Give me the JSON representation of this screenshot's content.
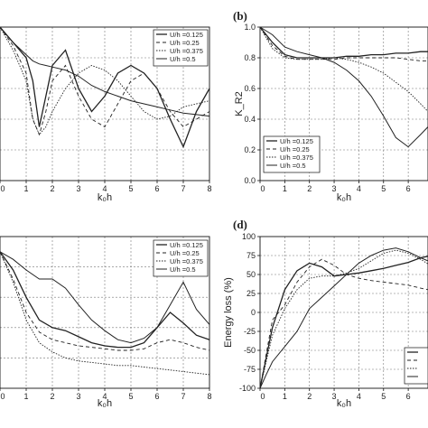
{
  "chart_data": [
    {
      "type": "line",
      "panel_label": "",
      "xlabel": "k₀h",
      "ylabel": "",
      "xlim": [
        0,
        8
      ],
      "ylim": [
        0,
        1.0
      ],
      "x_ticks": [
        "0",
        "1",
        "2",
        "3",
        "4",
        "5",
        "6",
        "7",
        "8"
      ],
      "y_ticks": [],
      "grid": true,
      "legend_position": "top-right",
      "series": [
        {
          "name": "U/h =0.125",
          "x": [
            0,
            0.5,
            1,
            1.25,
            1.5,
            1.75,
            2,
            2.5,
            3,
            3.5,
            4,
            4.5,
            5,
            5.5,
            6,
            6.5,
            7,
            7.5,
            8
          ],
          "y": [
            1.0,
            0.9,
            0.8,
            0.65,
            0.35,
            0.55,
            0.75,
            0.85,
            0.6,
            0.45,
            0.55,
            0.7,
            0.75,
            0.7,
            0.6,
            0.4,
            0.22,
            0.45,
            0.6
          ]
        },
        {
          "name": "U/h =0.25",
          "x": [
            0,
            0.5,
            1,
            1.25,
            1.5,
            1.75,
            2,
            2.5,
            3,
            3.5,
            4,
            4.5,
            5,
            5.5,
            6,
            6.5,
            7,
            7.5,
            8
          ],
          "y": [
            1.0,
            0.88,
            0.7,
            0.4,
            0.3,
            0.45,
            0.65,
            0.75,
            0.55,
            0.4,
            0.35,
            0.5,
            0.65,
            0.7,
            0.6,
            0.45,
            0.35,
            0.4,
            0.45
          ]
        },
        {
          "name": "U/h =0.375",
          "x": [
            0,
            0.5,
            1,
            1.25,
            1.5,
            1.75,
            2,
            2.5,
            3,
            3.5,
            4,
            4.5,
            5,
            5.5,
            6,
            6.5,
            7,
            7.5,
            8
          ],
          "y": [
            1.0,
            0.85,
            0.65,
            0.4,
            0.3,
            0.35,
            0.45,
            0.6,
            0.7,
            0.75,
            0.72,
            0.65,
            0.55,
            0.45,
            0.4,
            0.42,
            0.48,
            0.5,
            0.52
          ]
        },
        {
          "name": "U/h =0.5",
          "x": [
            0,
            0.5,
            1,
            1.25,
            1.5,
            1.75,
            2,
            2.5,
            3,
            3.5,
            4,
            4.5,
            5,
            5.5,
            6,
            6.5,
            7,
            7.5,
            8
          ],
          "y": [
            1.0,
            0.9,
            0.82,
            0.78,
            0.76,
            0.75,
            0.74,
            0.72,
            0.68,
            0.62,
            0.58,
            0.55,
            0.52,
            0.5,
            0.48,
            0.46,
            0.44,
            0.43,
            0.42
          ]
        }
      ]
    },
    {
      "type": "line",
      "panel_label": "(b)",
      "xlabel": "k₀h",
      "ylabel": "K_R2",
      "xlim": [
        0,
        6.8
      ],
      "ylim": [
        0,
        1.0
      ],
      "x_ticks": [
        "0",
        "1",
        "2",
        "3",
        "4",
        "5",
        "6"
      ],
      "y_ticks": [
        "0.0",
        "0.2",
        "0.4",
        "0.6",
        "0.8",
        "1.0"
      ],
      "grid": true,
      "legend_position": "bottom-left",
      "series": [
        {
          "name": "U/h =0.125",
          "x": [
            0,
            0.5,
            1,
            1.5,
            2,
            2.5,
            3,
            3.5,
            4,
            4.5,
            5,
            5.5,
            6,
            6.5,
            6.8
          ],
          "y": [
            1.0,
            0.9,
            0.82,
            0.8,
            0.8,
            0.8,
            0.8,
            0.81,
            0.81,
            0.82,
            0.82,
            0.83,
            0.83,
            0.84,
            0.84
          ]
        },
        {
          "name": "U/h =0.25",
          "x": [
            0,
            0.5,
            1,
            1.5,
            2,
            2.5,
            3,
            3.5,
            4,
            4.5,
            5,
            5.5,
            6,
            6.5,
            6.8
          ],
          "y": [
            1.0,
            0.88,
            0.81,
            0.79,
            0.79,
            0.79,
            0.79,
            0.8,
            0.8,
            0.8,
            0.8,
            0.8,
            0.79,
            0.78,
            0.78
          ]
        },
        {
          "name": "U/h =0.375",
          "x": [
            0,
            0.5,
            1,
            1.5,
            2,
            2.5,
            3,
            3.5,
            4,
            4.5,
            5,
            5.5,
            6,
            6.5,
            6.8
          ],
          "y": [
            1.0,
            0.86,
            0.8,
            0.79,
            0.79,
            0.79,
            0.8,
            0.79,
            0.77,
            0.74,
            0.7,
            0.64,
            0.58,
            0.5,
            0.45
          ]
        },
        {
          "name": "U/h =0.5",
          "x": [
            0,
            0.5,
            1,
            1.5,
            2,
            2.5,
            3,
            3.5,
            4,
            4.5,
            5,
            5.5,
            6,
            6.5,
            6.8
          ],
          "y": [
            1.0,
            0.95,
            0.87,
            0.84,
            0.82,
            0.8,
            0.77,
            0.72,
            0.65,
            0.55,
            0.42,
            0.28,
            0.22,
            0.3,
            0.35
          ]
        }
      ]
    },
    {
      "type": "line",
      "panel_label": "",
      "xlabel": "k₀h",
      "ylabel": "",
      "xlim": [
        0,
        8
      ],
      "ylim": [
        0,
        1.0
      ],
      "x_ticks": [
        "0",
        "1",
        "2",
        "3",
        "4",
        "5",
        "6",
        "7",
        "8"
      ],
      "y_ticks": [],
      "grid": true,
      "legend_position": "top-right",
      "series": [
        {
          "name": "U/h =0.125",
          "x": [
            0,
            0.5,
            1,
            1.5,
            2,
            2.5,
            3,
            3.5,
            4,
            4.5,
            5,
            5.5,
            6,
            6.5,
            7,
            7.5,
            8
          ],
          "y": [
            0.9,
            0.78,
            0.6,
            0.45,
            0.4,
            0.38,
            0.34,
            0.3,
            0.28,
            0.27,
            0.27,
            0.3,
            0.4,
            0.5,
            0.43,
            0.35,
            0.32
          ]
        },
        {
          "name": "U/h =0.25",
          "x": [
            0,
            0.5,
            1,
            1.5,
            2,
            2.5,
            3,
            3.5,
            4,
            4.5,
            5,
            5.5,
            6,
            6.5,
            7,
            7.5,
            8
          ],
          "y": [
            0.9,
            0.72,
            0.5,
            0.37,
            0.32,
            0.3,
            0.28,
            0.27,
            0.26,
            0.25,
            0.25,
            0.26,
            0.3,
            0.32,
            0.3,
            0.27,
            0.25
          ]
        },
        {
          "name": "U/h =0.375",
          "x": [
            0,
            0.5,
            1,
            1.5,
            2,
            2.5,
            3,
            3.5,
            4,
            4.5,
            5,
            5.5,
            6,
            6.5,
            7,
            7.5,
            8
          ],
          "y": [
            0.9,
            0.7,
            0.45,
            0.3,
            0.24,
            0.2,
            0.18,
            0.17,
            0.16,
            0.15,
            0.15,
            0.14,
            0.13,
            0.12,
            0.11,
            0.1,
            0.09
          ]
        },
        {
          "name": "U/h =0.5",
          "x": [
            0,
            0.5,
            1,
            1.5,
            2,
            2.5,
            3,
            3.5,
            4,
            4.5,
            5,
            5.5,
            6,
            6.5,
            7,
            7.5,
            8
          ],
          "y": [
            0.9,
            0.85,
            0.78,
            0.72,
            0.72,
            0.66,
            0.55,
            0.45,
            0.38,
            0.32,
            0.3,
            0.33,
            0.4,
            0.55,
            0.7,
            0.52,
            0.42
          ]
        }
      ]
    },
    {
      "type": "line",
      "panel_label": "(d)",
      "xlabel": "k₀h",
      "ylabel": "Energy loss (%)",
      "xlim": [
        0,
        6.8
      ],
      "ylim": [
        -100,
        100
      ],
      "x_ticks": [
        "0",
        "1",
        "2",
        "3",
        "4",
        "5",
        "6"
      ],
      "y_ticks": [
        "-100",
        "-75",
        "-50",
        "-25",
        "0",
        "25",
        "50",
        "75",
        "100"
      ],
      "grid": true,
      "legend_position": "bottom-right",
      "series": [
        {
          "name": "",
          "x": [
            0,
            0.25,
            0.5,
            1,
            1.5,
            2,
            2.5,
            3,
            3.5,
            4,
            4.5,
            5,
            5.5,
            6,
            6.5,
            6.8
          ],
          "y": [
            -100,
            -60,
            -20,
            30,
            55,
            65,
            60,
            48,
            50,
            52,
            55,
            58,
            62,
            66,
            72,
            74
          ]
        },
        {
          "name": "",
          "x": [
            0,
            0.25,
            0.5,
            1,
            1.5,
            2,
            2.5,
            3,
            3.5,
            4,
            4.5,
            5,
            5.5,
            6,
            6.5,
            6.8
          ],
          "y": [
            -100,
            -55,
            -10,
            10,
            40,
            60,
            70,
            62,
            50,
            45,
            42,
            40,
            38,
            36,
            32,
            30
          ]
        },
        {
          "name": "",
          "x": [
            0,
            0.25,
            0.5,
            1,
            1.5,
            2,
            2.5,
            3,
            3.5,
            4,
            4.5,
            5,
            5.5,
            6,
            6.5,
            6.8
          ],
          "y": [
            -100,
            -65,
            -30,
            5,
            30,
            45,
            48,
            48,
            52,
            58,
            68,
            78,
            82,
            78,
            70,
            64
          ]
        },
        {
          "name": "",
          "x": [
            0,
            0.25,
            0.5,
            1,
            1.5,
            2,
            2.5,
            3,
            3.5,
            4,
            4.5,
            5,
            5.5,
            6,
            6.5,
            6.8
          ],
          "y": [
            -100,
            -82,
            -65,
            -45,
            -25,
            5,
            20,
            35,
            50,
            65,
            75,
            82,
            85,
            80,
            72,
            68
          ]
        }
      ]
    }
  ],
  "styles": {
    "line_color": "#222222",
    "grid_color": "#777777",
    "series_dash": [
      "",
      "4 3",
      "1.5 1.5",
      ""
    ],
    "series_width": [
      1.3,
      0.9,
      0.9,
      1.0
    ]
  }
}
